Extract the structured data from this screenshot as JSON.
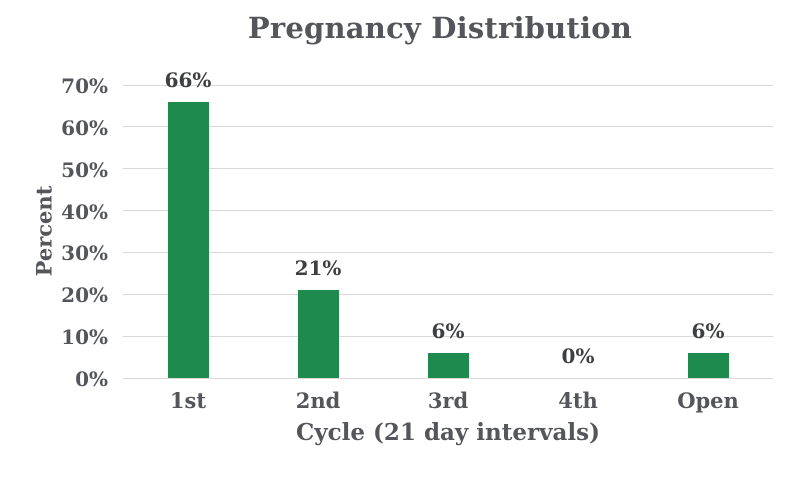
{
  "chart_data": {
    "type": "bar",
    "title": "Pregnancy Distribution",
    "categories": [
      "1st",
      "2nd",
      "3rd",
      "4th",
      "Open"
    ],
    "values": [
      66,
      21,
      6,
      0,
      6
    ],
    "data_labels": [
      "66%",
      "21%",
      "6%",
      "0%",
      "6%"
    ],
    "xlabel": "Cycle (21 day intervals)",
    "ylabel": "Percent",
    "ylim": [
      0,
      70
    ],
    "y_tick_step": 10,
    "y_ticks": [
      "0%",
      "10%",
      "20%",
      "30%",
      "40%",
      "50%",
      "60%",
      "70%"
    ],
    "grid": true,
    "legend": "none",
    "colors": {
      "bar": "#1E8A4D",
      "gridline": "#D9D9D9",
      "axis_text": "#54565B",
      "data_label_text": "#3E3F41",
      "background": "#FFFFFF"
    }
  }
}
